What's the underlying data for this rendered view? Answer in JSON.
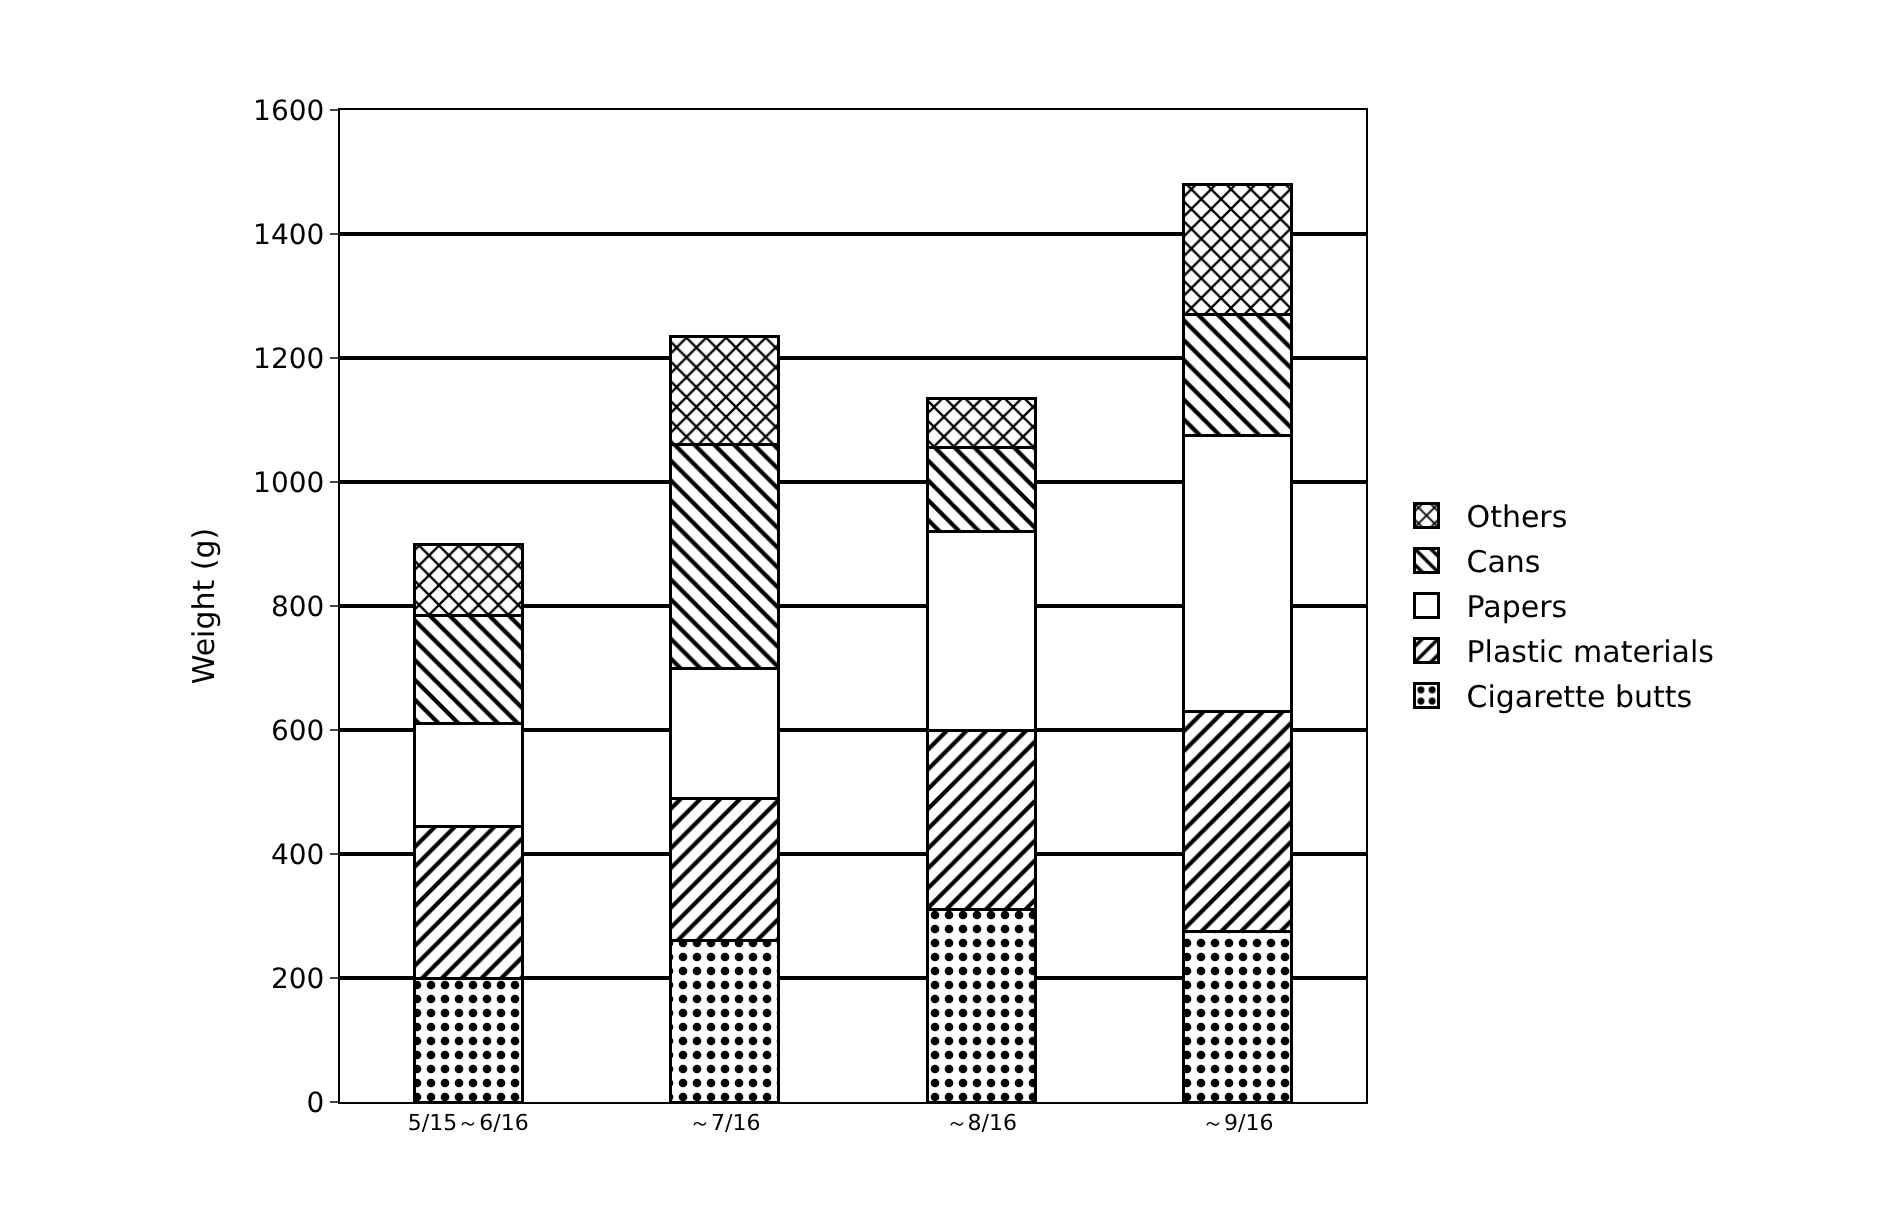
{
  "chart_data": {
    "type": "bar",
    "stacked": true,
    "ylabel": "Weight (g)",
    "categories": [
      "5/15～6/16",
      "～7/16",
      "～8/16",
      "～9/16"
    ],
    "series": [
      {
        "name": "Cigarette butts",
        "color": "#000000",
        "values": [
          200,
          260,
          310,
          275
        ]
      },
      {
        "name": "Plastic materials",
        "color": "#000000",
        "values": [
          245,
          230,
          290,
          355
        ]
      },
      {
        "name": "Papers",
        "color": "#ffffff",
        "values": [
          165,
          210,
          320,
          445
        ]
      },
      {
        "name": "Cans",
        "color": "#000000",
        "values": [
          175,
          360,
          135,
          195
        ]
      },
      {
        "name": "Others",
        "color": "#000000",
        "values": [
          115,
          175,
          80,
          210
        ]
      }
    ],
    "ylim": [
      0,
      1600
    ],
    "yticks": [
      0,
      200,
      400,
      600,
      800,
      1000,
      1200,
      1400,
      1600
    ],
    "grid": "y",
    "legend": "right"
  }
}
